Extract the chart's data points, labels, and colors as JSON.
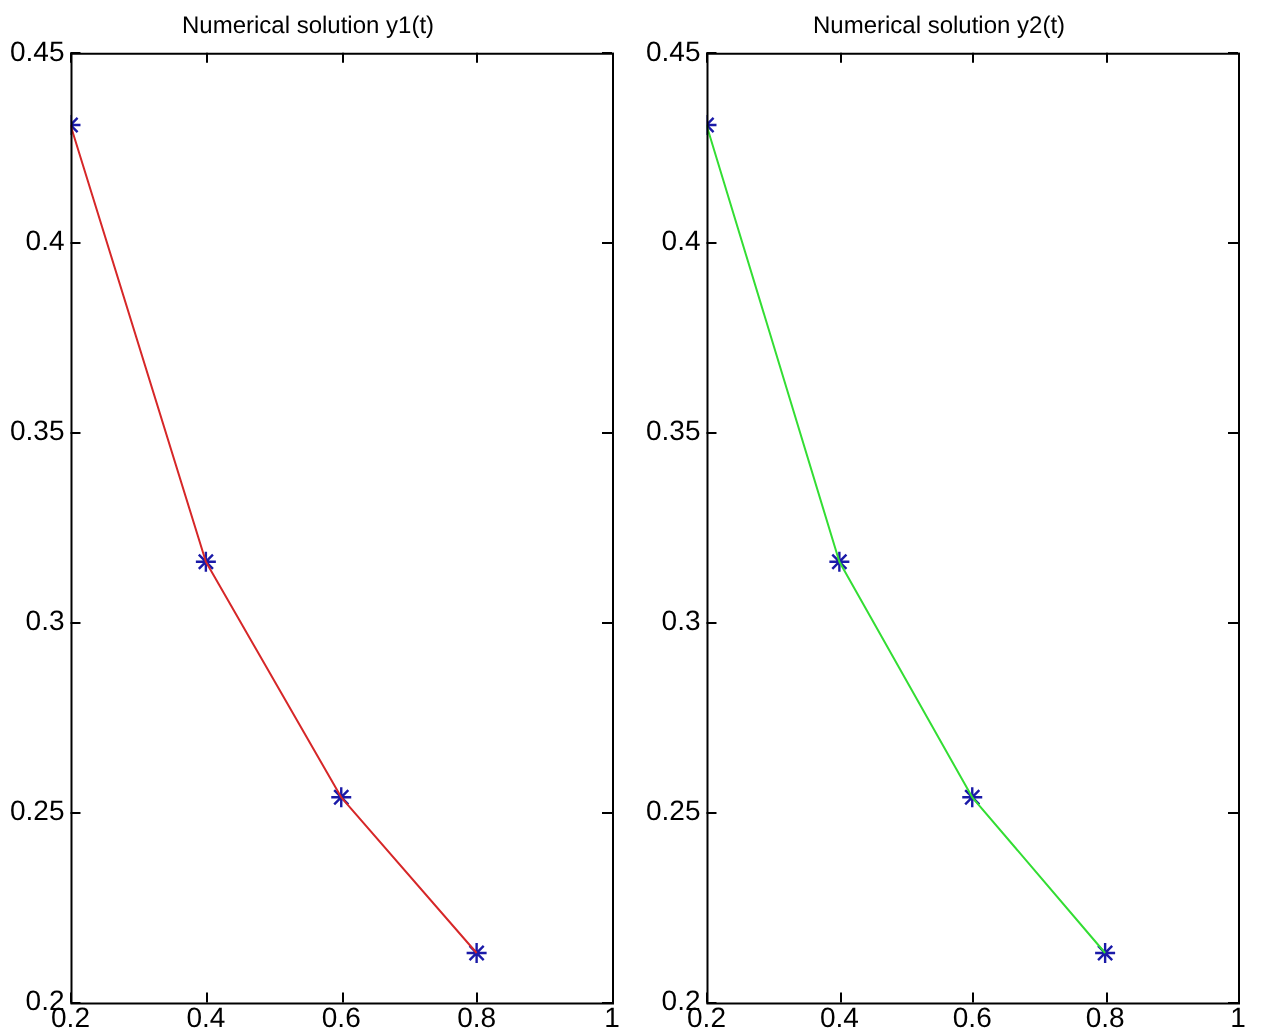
{
  "chart_data": [
    {
      "type": "line",
      "title": "Numerical solution y1(t)",
      "x": [
        0.2,
        0.4,
        0.6,
        0.8
      ],
      "series": [
        {
          "type": "line",
          "color": "#d62728",
          "values": [
            0.431,
            0.316,
            0.254,
            0.213
          ]
        },
        {
          "type": "scatter",
          "color": "#1a1aa8",
          "marker": "cross",
          "values": [
            0.431,
            0.316,
            0.254,
            0.213
          ]
        }
      ],
      "xlim": [
        0.2,
        1
      ],
      "xticks": [
        0.2,
        0.4,
        0.6,
        0.8,
        1
      ],
      "ylim": [
        0.2,
        0.45
      ],
      "yticks": [
        0.2,
        0.25,
        0.3,
        0.35,
        0.4,
        0.45
      ],
      "grid": false,
      "legend": false
    },
    {
      "type": "line",
      "title": "Numerical solution y2(t)",
      "x": [
        0.2,
        0.4,
        0.6,
        0.8
      ],
      "series": [
        {
          "type": "line",
          "color": "#33dd33",
          "values": [
            0.431,
            0.316,
            0.254,
            0.213
          ]
        },
        {
          "type": "scatter",
          "color": "#1a1aa8",
          "marker": "cross",
          "values": [
            0.431,
            0.316,
            0.254,
            0.213
          ]
        }
      ],
      "xlim": [
        0.2,
        1
      ],
      "xticks": [
        0.2,
        0.4,
        0.6,
        0.8,
        1
      ],
      "ylim": [
        0.2,
        0.45
      ],
      "yticks": [
        0.2,
        0.25,
        0.3,
        0.35,
        0.4,
        0.45
      ],
      "grid": false,
      "legend": false
    }
  ]
}
